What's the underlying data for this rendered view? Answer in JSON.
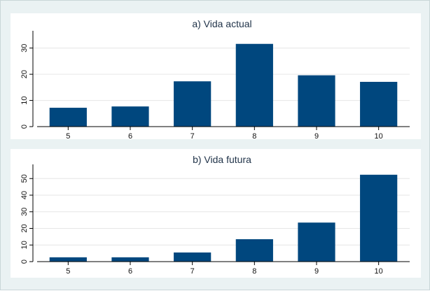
{
  "chart_data": [
    {
      "type": "bar",
      "title": "a) Vida actual",
      "xlabel": "",
      "ylabel": "",
      "categories": [
        "5",
        "6",
        "7",
        "8",
        "9",
        "10"
      ],
      "values": [
        7.2,
        7.7,
        17.3,
        31.6,
        19.6,
        17.1
      ],
      "ylim": [
        0,
        35
      ],
      "yticks": [
        0,
        10,
        20,
        30
      ],
      "grid": true,
      "bar_color": "#00477e"
    },
    {
      "type": "bar",
      "title": "b) Vida futura",
      "xlabel": "",
      "ylabel": "",
      "categories": [
        "5",
        "6",
        "7",
        "8",
        "9",
        "10"
      ],
      "values": [
        2.6,
        2.6,
        5.5,
        13.5,
        23.5,
        52.3
      ],
      "ylim": [
        0,
        56
      ],
      "yticks": [
        0,
        10,
        20,
        30,
        40,
        50
      ],
      "grid": true,
      "bar_color": "#00477e"
    }
  ],
  "colors": {
    "background": "#eaf2f3",
    "plot_area": "#ffffff",
    "bar": "#00477e",
    "title": "#1f3248"
  }
}
